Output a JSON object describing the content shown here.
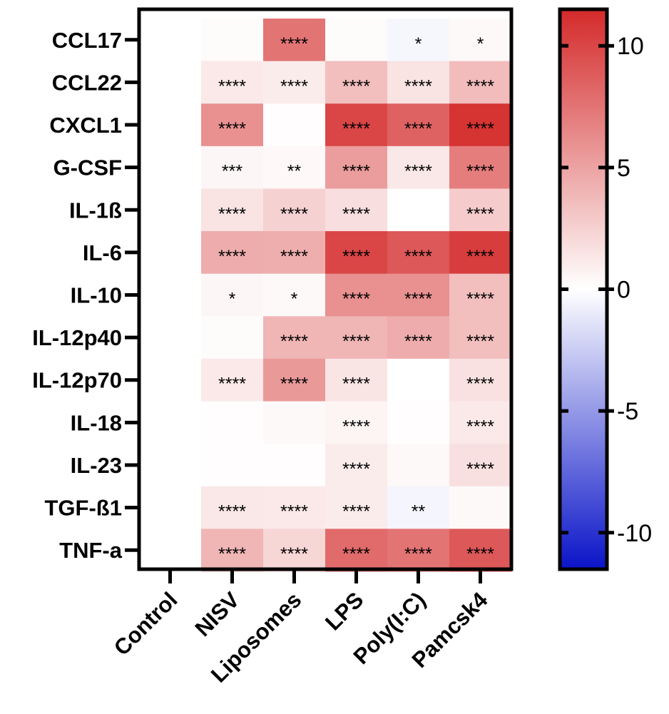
{
  "chart_data": {
    "type": "heatmap",
    "title": "",
    "xlabel": "",
    "ylabel": "",
    "columns": [
      "Control",
      "NISV",
      "Liposomes",
      "LPS",
      "Poly(I:C)",
      "Pamcsk4"
    ],
    "rows": [
      "CCL17",
      "CCL22",
      "CXCL1",
      "G-CSF",
      "IL-1ß",
      "IL-6",
      "IL-10",
      "IL-12p40",
      "IL-12p70",
      "IL-18",
      "IL-23",
      "TGF-ß1",
      "TNF-a"
    ],
    "values": [
      [
        0,
        0.2,
        7.5,
        0.2,
        -0.4,
        0.3
      ],
      [
        0,
        1.2,
        1.0,
        3.5,
        1.5,
        3.6
      ],
      [
        0,
        6.0,
        0.1,
        10.0,
        8.5,
        11.0
      ],
      [
        0,
        0.5,
        0.4,
        5.3,
        1.3,
        7.0
      ],
      [
        0,
        1.5,
        2.5,
        1.8,
        0.0,
        2.8
      ],
      [
        0,
        4.5,
        4.4,
        10.0,
        9.0,
        10.5
      ],
      [
        0,
        0.5,
        0.3,
        6.0,
        6.0,
        3.5
      ],
      [
        0,
        0.2,
        4.0,
        4.0,
        4.5,
        3.5
      ],
      [
        0,
        1.2,
        5.5,
        1.4,
        0.0,
        1.6
      ],
      [
        0,
        0.1,
        0.3,
        0.6,
        0.1,
        1.2
      ],
      [
        0,
        0.1,
        0.1,
        1.0,
        0.3,
        1.7
      ],
      [
        0,
        1.3,
        1.2,
        1.0,
        -0.5,
        0.3
      ],
      [
        0,
        4.0,
        2.2,
        8.0,
        7.5,
        9.0
      ]
    ],
    "significance": [
      [
        "",
        "",
        "****",
        "",
        "*",
        "*"
      ],
      [
        "",
        "****",
        "****",
        "****",
        "****",
        "****"
      ],
      [
        "",
        "****",
        "",
        "****",
        "****",
        "****"
      ],
      [
        "",
        "***",
        "**",
        "****",
        "****",
        "****"
      ],
      [
        "",
        "****",
        "****",
        "****",
        "",
        "****"
      ],
      [
        "",
        "****",
        "****",
        "****",
        "****",
        "****"
      ],
      [
        "",
        "*",
        "*",
        "****",
        "****",
        "****"
      ],
      [
        "",
        "",
        "****",
        "****",
        "****",
        "****"
      ],
      [
        "",
        "****",
        "****",
        "****",
        "",
        "****"
      ],
      [
        "",
        "",
        "",
        "****",
        "",
        "****"
      ],
      [
        "",
        "",
        "",
        "****",
        "",
        "****"
      ],
      [
        "",
        "****",
        "****",
        "****",
        "**",
        ""
      ],
      [
        "",
        "****",
        "****",
        "****",
        "****",
        "****"
      ]
    ],
    "colorbar": {
      "min": -11.5,
      "max": 11.5,
      "ticks": [
        10,
        5,
        0,
        -5,
        -10
      ],
      "tick_labels": [
        "10",
        "5",
        "0",
        "-5",
        "-10"
      ],
      "low_color": "#0a14c8",
      "mid_color": "#ffffff",
      "high_color": "#d42a2a"
    }
  }
}
